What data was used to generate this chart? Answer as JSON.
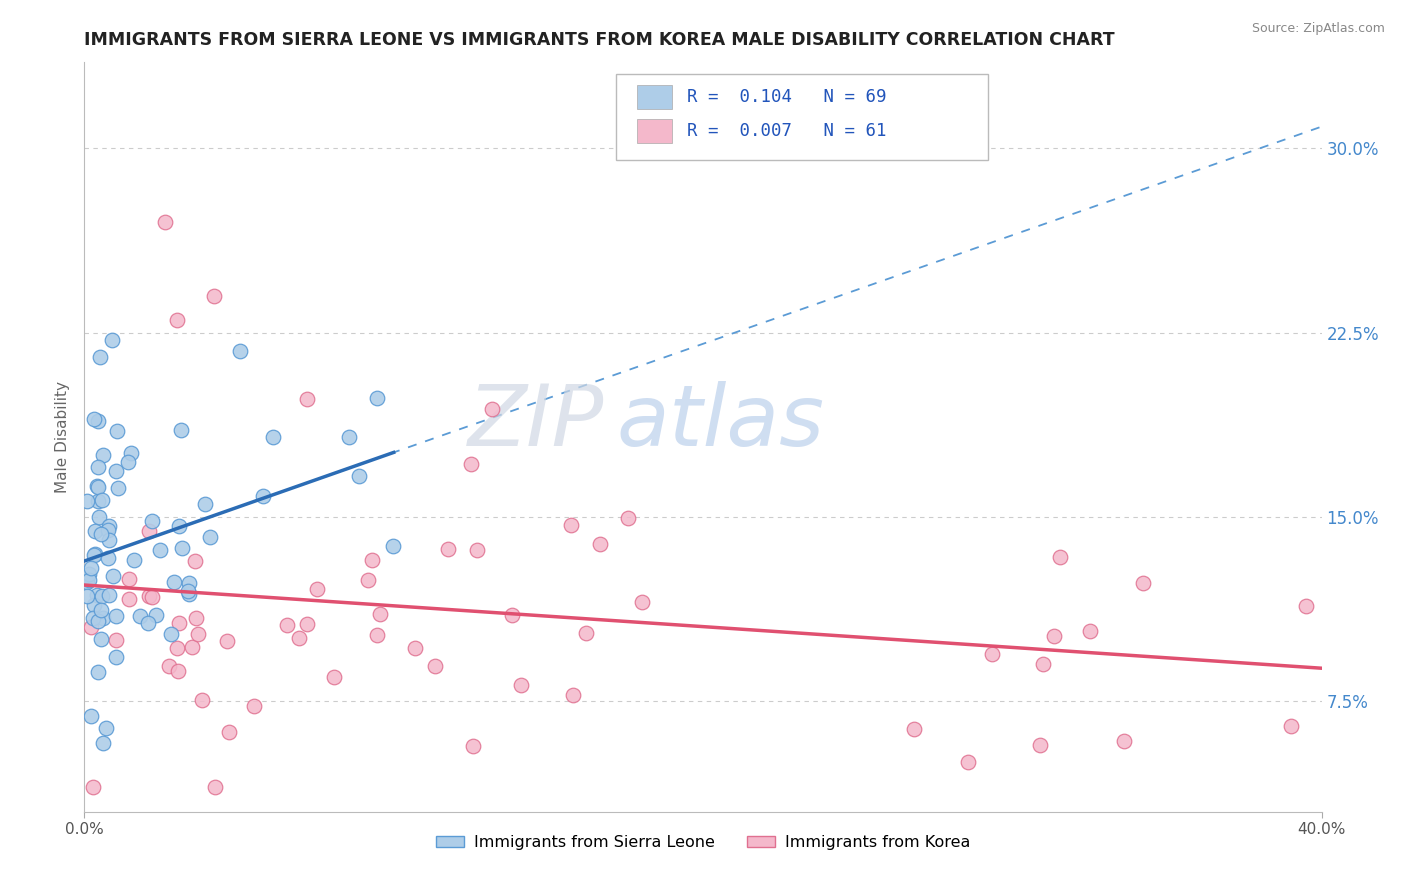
{
  "title": "IMMIGRANTS FROM SIERRA LEONE VS IMMIGRANTS FROM KOREA MALE DISABILITY CORRELATION CHART",
  "source": "Source: ZipAtlas.com",
  "ylabel": "Male Disability",
  "ytick_labels": [
    "7.5%",
    "15.0%",
    "22.5%",
    "30.0%"
  ],
  "ytick_values": [
    0.075,
    0.15,
    0.225,
    0.3
  ],
  "xmin": 0.0,
  "xmax": 0.4,
  "ymin": 0.03,
  "ymax": 0.335,
  "legend1_label": "R =  0.104   N = 69",
  "legend2_label": "R =  0.007   N = 61",
  "legend1_color": "#aecde8",
  "legend2_color": "#f4b8cb",
  "dot_sl_color": "#aecde8",
  "dot_sl_edge": "#5b9bd5",
  "dot_k_color": "#f4b8cb",
  "dot_k_edge": "#e07090",
  "line_sl_color": "#2b6cb5",
  "line_k_color": "#e05070",
  "dash_line_color": "#5b9bd5",
  "watermark_zip": "#c8d4e8",
  "watermark_atlas": "#a8c0e0",
  "bottom_legend_sl": "Immigrants from Sierra Leone",
  "bottom_legend_k": "Immigrants from Korea"
}
